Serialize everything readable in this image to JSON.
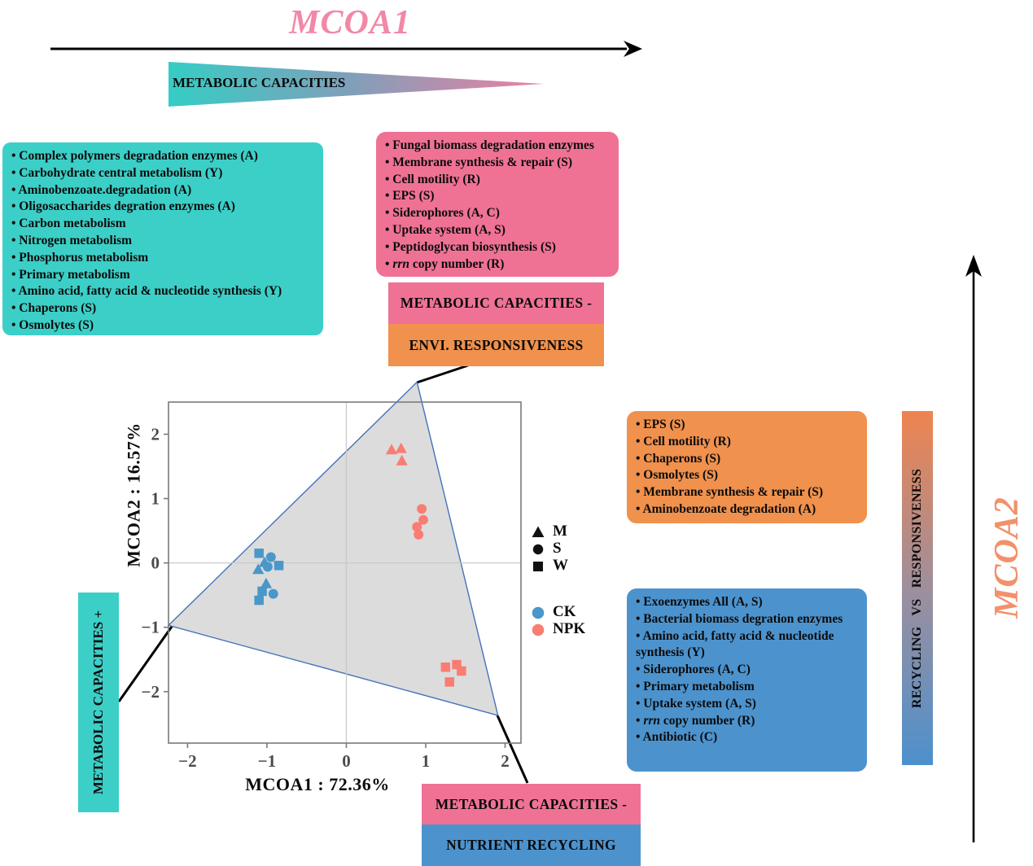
{
  "figure": {
    "mcoa1_title": "MCOA1",
    "mcoa2_title": "MCOA2",
    "top_gradient_label": "METABOLIC CAPACITIES",
    "side_gradient_label": "RECYCLING VS RESPONSIVENESS",
    "colors": {
      "teal": "#3CCFC7",
      "pink": "#EF7295",
      "orange": "#F0914D",
      "blue": "#4C93CE",
      "title_pink": "#F287A7",
      "title_orange": "#F2916B",
      "ck": "#4A97C9",
      "npk": "#F97D72",
      "hull_fill": "#DCDCDC",
      "hull_stroke": "#4472B9",
      "grid": "#C9C9C9",
      "panel_border": "#7A7A7A",
      "tick_text": "#4A4A4A"
    }
  },
  "panels": {
    "teal_list": [
      "Complex polymers degradation enzymes (A)",
      "Carbohydrate central metabolism (Y)",
      "Aminobenzoate.degradation (A)",
      "Oligosaccharides degration enzymes (A)",
      "Carbon metabolism",
      "Nitrogen metabolism",
      "Phosphorus metabolism",
      "Primary metabolism",
      "Amino acid, fatty acid & nucleotide synthesis (Y)",
      "Chaperons (S)",
      "Osmolytes (S)"
    ],
    "pink_list": [
      "Fungal biomass degradation enzymes",
      "Membrane synthesis & repair (S)",
      "Cell motility (R)",
      "EPS (S)",
      "Siderophores (A, C)",
      "Uptake system (A, S)",
      "Peptidoglycan biosynthesis (S)",
      "*rrn* copy number (R)"
    ],
    "orange_list": [
      "EPS (S)",
      "Cell motility (R)",
      "Chaperons (S)",
      "Osmolytes (S)",
      "Membrane synthesis & repair (S)",
      "Aminobenzoate degradation (A)"
    ],
    "blue_list": [
      "Exoenzymes All (A, S)",
      "Bacterial biomass degration enzymes",
      "Amino acid, fatty acid & nucleotide synthesis (Y)",
      "Siderophores (A, C)",
      "Primary metabolism",
      "Uptake system (A, S)",
      "*rrn* copy number (R)",
      "Antibiotic (C)"
    ]
  },
  "tags": {
    "envi": {
      "line1": "METABOLIC CAPACITIES -",
      "line2": "ENVI. RESPONSIVENESS"
    },
    "nutrient": {
      "line1": "METABOLIC CAPACITIES -",
      "line2": "NUTRIENT RECYCLING"
    },
    "metabolic_plus": "METABOLIC CAPACITIES +"
  },
  "chart_data": {
    "type": "scatter",
    "xlabel": "MCOA1 :  72.36%",
    "ylabel": "MCOA2 :  16.57%",
    "xlim": [
      -2.24,
      2.2
    ],
    "ylim": [
      -2.8,
      2.5
    ],
    "xticks": [
      -2,
      -1,
      0,
      1,
      2
    ],
    "yticks": [
      -2,
      -1,
      0,
      1,
      2
    ],
    "grid": "zero lines only",
    "legend_position": "right of panel",
    "shape_legend": [
      {
        "shape": "triangle",
        "label": "M"
      },
      {
        "shape": "circle",
        "label": "S"
      },
      {
        "shape": "square",
        "label": "W"
      }
    ],
    "color_legend": [
      {
        "color_key": "ck",
        "label": "CK"
      },
      {
        "color_key": "npk",
        "label": "NPK"
      }
    ],
    "hull": {
      "vertices": [
        [
          0.89,
          2.81
        ],
        [
          -2.24,
          -0.97
        ],
        [
          1.91,
          -2.37
        ]
      ]
    },
    "series": [
      {
        "name": "CK",
        "color_key": "ck",
        "points": [
          {
            "shape": "square",
            "x": -1.1,
            "y": 0.15
          },
          {
            "shape": "circle",
            "x": -0.95,
            "y": 0.09
          },
          {
            "shape": "triangle",
            "x": -1.03,
            "y": 0.01
          },
          {
            "shape": "square",
            "x": -0.85,
            "y": -0.04
          },
          {
            "shape": "circle",
            "x": -0.99,
            "y": -0.06
          },
          {
            "shape": "triangle",
            "x": -1.11,
            "y": -0.1
          },
          {
            "shape": "triangle",
            "x": -1.01,
            "y": -0.32
          },
          {
            "shape": "square",
            "x": -1.06,
            "y": -0.44
          },
          {
            "shape": "circle",
            "x": -0.92,
            "y": -0.48
          },
          {
            "shape": "square",
            "x": -1.1,
            "y": -0.58
          }
        ]
      },
      {
        "name": "NPK",
        "color_key": "npk",
        "points": [
          {
            "shape": "triangle",
            "x": 0.57,
            "y": 1.76
          },
          {
            "shape": "triangle",
            "x": 0.69,
            "y": 1.78
          },
          {
            "shape": "triangle",
            "x": 0.7,
            "y": 1.59
          },
          {
            "shape": "circle",
            "x": 0.95,
            "y": 0.84
          },
          {
            "shape": "circle",
            "x": 0.97,
            "y": 0.67
          },
          {
            "shape": "circle",
            "x": 0.89,
            "y": 0.56
          },
          {
            "shape": "circle",
            "x": 0.91,
            "y": 0.44
          },
          {
            "shape": "square",
            "x": 1.25,
            "y": -1.62
          },
          {
            "shape": "square",
            "x": 1.39,
            "y": -1.58
          },
          {
            "shape": "square",
            "x": 1.45,
            "y": -1.68
          },
          {
            "shape": "square",
            "x": 1.3,
            "y": -1.85
          }
        ]
      }
    ]
  }
}
